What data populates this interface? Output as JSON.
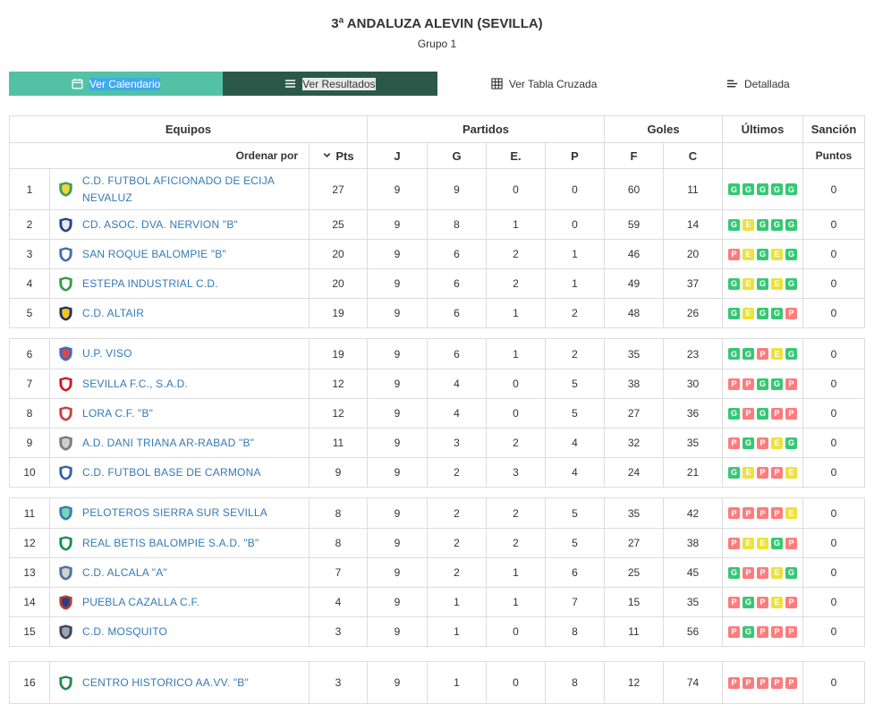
{
  "page": {
    "title": "3ª ANDALUZA ALEVIN (SEVILLA)",
    "subtitle": "Grupo 1"
  },
  "tabs": [
    {
      "label": "Ver Calendario",
      "icon": "calendar-icon",
      "bg": "#53c1a5",
      "fg": "#ffffff"
    },
    {
      "label": "Ver Resultados",
      "icon": "list-icon",
      "bg": "#3fa9f0",
      "fg": "#ffffff"
    },
    {
      "label": "Ver Tabla Cruzada",
      "icon": "table-icon",
      "bg": "#2c584a",
      "fg": "#ffffff"
    },
    {
      "label": "Detallada",
      "icon": "detail-icon",
      "bg": "#e9e9e9",
      "fg": "#333333"
    }
  ],
  "table": {
    "headers": {
      "equipos": "Equipos",
      "partidos": "Partidos",
      "goles": "Goles",
      "ultimos": "Últimos",
      "sancion": "Sanción",
      "ordenar_por": "Ordenar por",
      "pts": "Pts",
      "j": "J",
      "g": "G",
      "e": "E.",
      "p": "P",
      "f": "F",
      "c": "C",
      "puntos": "Puntos"
    },
    "link_color": "#337ab7",
    "result_colors": {
      "G": "#35c873",
      "E": "#ece23b",
      "P": "#fd7c7c"
    },
    "rows": [
      {
        "pos": 1,
        "team": "C.D. FUTBOL AFICIONADO DE ECIJA NEVALUZ",
        "pts": 27,
        "j": 9,
        "g": 9,
        "e": 0,
        "p": 0,
        "f": 60,
        "c": 11,
        "last5": [
          "G",
          "G",
          "G",
          "G",
          "G"
        ],
        "sancion": 0,
        "badge": [
          "#3e9e52",
          "#f0d53e"
        ]
      },
      {
        "pos": 2,
        "team": "CD. ASOC. DVA. NERVION \"B\"",
        "pts": 25,
        "j": 9,
        "g": 8,
        "e": 1,
        "p": 0,
        "f": 59,
        "c": 14,
        "last5": [
          "G",
          "E",
          "G",
          "G",
          "G"
        ],
        "sancion": 0,
        "badge": [
          "#1d3f8f",
          "#e8e8e8"
        ]
      },
      {
        "pos": 3,
        "team": "SAN ROQUE BALOMPIE \"B\"",
        "pts": 20,
        "j": 9,
        "g": 6,
        "e": 2,
        "p": 1,
        "f": 46,
        "c": 20,
        "last5": [
          "P",
          "E",
          "G",
          "E",
          "G"
        ],
        "sancion": 0,
        "badge": [
          "#3a6fb5",
          "#ffffff"
        ]
      },
      {
        "pos": 4,
        "team": "ESTEPA INDUSTRIAL C.D.",
        "pts": 20,
        "j": 9,
        "g": 6,
        "e": 2,
        "p": 1,
        "f": 49,
        "c": 37,
        "last5": [
          "G",
          "E",
          "G",
          "E",
          "G"
        ],
        "sancion": 0,
        "badge": [
          "#2f9e41",
          "#ffffff"
        ]
      },
      {
        "pos": 5,
        "team": "C.D. ALTAIR",
        "pts": 19,
        "j": 9,
        "g": 6,
        "e": 1,
        "p": 2,
        "f": 48,
        "c": 26,
        "last5": [
          "G",
          "E",
          "G",
          "G",
          "P"
        ],
        "sancion": 0,
        "badge": [
          "#1b2a6b",
          "#f5c518"
        ]
      },
      {
        "pos": 6,
        "team": "U.P. VISO",
        "pts": 19,
        "j": 9,
        "g": 6,
        "e": 1,
        "p": 2,
        "f": 35,
        "c": 23,
        "last5": [
          "G",
          "G",
          "P",
          "E",
          "G"
        ],
        "sancion": 0,
        "badge": [
          "#2e6fd0",
          "#d94b4b"
        ]
      },
      {
        "pos": 7,
        "team": "SEVILLA F.C., S.A.D.",
        "pts": 12,
        "j": 9,
        "g": 4,
        "e": 0,
        "p": 5,
        "f": 38,
        "c": 30,
        "last5": [
          "P",
          "P",
          "G",
          "G",
          "P"
        ],
        "sancion": 0,
        "badge": [
          "#d8121a",
          "#ffffff"
        ]
      },
      {
        "pos": 8,
        "team": "LORA C.F. \"B\"",
        "pts": 12,
        "j": 9,
        "g": 4,
        "e": 0,
        "p": 5,
        "f": 27,
        "c": 36,
        "last5": [
          "G",
          "P",
          "G",
          "P",
          "P"
        ],
        "sancion": 0,
        "badge": [
          "#cf3a3a",
          "#ffffff"
        ]
      },
      {
        "pos": 9,
        "team": "A.D. DANI TRIANA AR-RABAD \"B\"",
        "pts": 11,
        "j": 9,
        "g": 3,
        "e": 2,
        "p": 4,
        "f": 32,
        "c": 35,
        "last5": [
          "P",
          "G",
          "P",
          "E",
          "G"
        ],
        "sancion": 0,
        "badge": [
          "#7a7a7a",
          "#cfcfcf"
        ]
      },
      {
        "pos": 10,
        "team": "C.D. FUTBOL BASE DE CARMONA",
        "pts": 9,
        "j": 9,
        "g": 2,
        "e": 3,
        "p": 4,
        "f": 24,
        "c": 21,
        "last5": [
          "G",
          "E",
          "P",
          "P",
          "E"
        ],
        "sancion": 0,
        "badge": [
          "#2b5fb0",
          "#ffffff"
        ]
      },
      {
        "pos": 11,
        "team": "PELOTEROS SIERRA SUR SEVILLA",
        "pts": 8,
        "j": 9,
        "g": 2,
        "e": 2,
        "p": 5,
        "f": 35,
        "c": 42,
        "last5": [
          "P",
          "P",
          "P",
          "P",
          "E"
        ],
        "sancion": 0,
        "badge": [
          "#2a7fba",
          "#7ed3b2"
        ]
      },
      {
        "pos": 12,
        "team": "REAL BETIS BALOMPIE S.A.D. \"B\"",
        "pts": 8,
        "j": 9,
        "g": 2,
        "e": 2,
        "p": 5,
        "f": 27,
        "c": 38,
        "last5": [
          "P",
          "E",
          "E",
          "G",
          "P"
        ],
        "sancion": 0,
        "badge": [
          "#0b9444",
          "#ffffff"
        ]
      },
      {
        "pos": 13,
        "team": "C.D. ALCALA \"A\"",
        "pts": 7,
        "j": 9,
        "g": 2,
        "e": 1,
        "p": 6,
        "f": 25,
        "c": 45,
        "last5": [
          "G",
          "P",
          "P",
          "E",
          "G"
        ],
        "sancion": 0,
        "badge": [
          "#4a6fa5",
          "#d0d0d0"
        ]
      },
      {
        "pos": 14,
        "team": "PUEBLA CAZALLA C.F.",
        "pts": 4,
        "j": 9,
        "g": 1,
        "e": 1,
        "p": 7,
        "f": 15,
        "c": 35,
        "last5": [
          "P",
          "G",
          "P",
          "E",
          "P"
        ],
        "sancion": 0,
        "badge": [
          "#c0392b",
          "#2c3e80"
        ]
      },
      {
        "pos": 15,
        "team": "C.D. MOSQUITO",
        "pts": 3,
        "j": 9,
        "g": 1,
        "e": 0,
        "p": 8,
        "f": 11,
        "c": 56,
        "last5": [
          "P",
          "G",
          "P",
          "P",
          "P"
        ],
        "sancion": 0,
        "badge": [
          "#39414f",
          "#9aa5b5"
        ]
      },
      {
        "pos": 16,
        "team": "CENTRO HISTORICO AA.VV. \"B\"",
        "pts": 3,
        "j": 9,
        "g": 1,
        "e": 0,
        "p": 8,
        "f": 12,
        "c": 74,
        "last5": [
          "P",
          "P",
          "P",
          "P",
          "P"
        ],
        "sancion": 0,
        "badge": [
          "#1e8a4c",
          "#ffffff"
        ]
      }
    ],
    "groups": [
      [
        0,
        1,
        2,
        3,
        4
      ],
      [
        5,
        6,
        7,
        8,
        9
      ],
      [
        10,
        11,
        12,
        13,
        14
      ],
      [
        15
      ]
    ]
  }
}
